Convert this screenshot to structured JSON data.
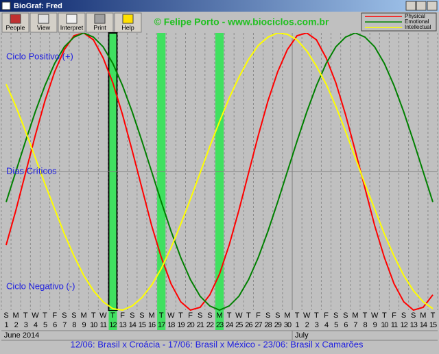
{
  "window": {
    "title": "BioGraf: Fred"
  },
  "toolbar": {
    "buttons": [
      "People",
      "View",
      "Interpret",
      "Print",
      "Help"
    ]
  },
  "watermark": "© Felipe Porto - www.biociclos.com.br",
  "footer": "12/06: Brasil x Croácia - 17/06: Brasil x México - 23/06: Brasil x Camarões",
  "chart_data": {
    "type": "line",
    "labels": {
      "positive": "Ciclo Positivo (+)",
      "critical": "Dias Críticos",
      "negative": "Ciclo Negativo (-)"
    },
    "categories": [
      "1",
      "2",
      "3",
      "4",
      "5",
      "6",
      "7",
      "8",
      "9",
      "10",
      "11",
      "12",
      "13",
      "14",
      "15",
      "16",
      "17",
      "18",
      "19",
      "20",
      "21",
      "22",
      "23",
      "24",
      "25",
      "26",
      "27",
      "28",
      "29",
      "30",
      "1",
      "2",
      "3",
      "4",
      "5",
      "6",
      "7",
      "8",
      "9",
      "10",
      "11",
      "12",
      "13",
      "14",
      "15"
    ],
    "weekdays": [
      "S",
      "M",
      "T",
      "W",
      "T",
      "F",
      "S",
      "S",
      "M",
      "T",
      "W",
      "T",
      "F",
      "S",
      "S",
      "M",
      "T",
      "W",
      "T",
      "F",
      "S",
      "S",
      "M",
      "T",
      "W",
      "T",
      "F",
      "S",
      "S",
      "M",
      "T",
      "W",
      "T",
      "F",
      "S",
      "S",
      "M",
      "T",
      "W",
      "T",
      "F",
      "S",
      "S",
      "M",
      "T"
    ],
    "months": [
      "June 2014",
      "July"
    ],
    "highlight_days": [
      "12",
      "17",
      "23"
    ],
    "ylim": [
      -1,
      1
    ],
    "grid": true,
    "legend": "upper right",
    "series": [
      {
        "name": "Physical",
        "color": "#ff0000",
        "values": [
          -0.53,
          -0.28,
          -0.01,
          0.26,
          0.51,
          0.72,
          0.88,
          0.98,
          1.0,
          0.95,
          0.82,
          0.64,
          0.41,
          0.15,
          -0.12,
          -0.39,
          -0.62,
          -0.81,
          -0.94,
          -1.0,
          -0.98,
          -0.89,
          -0.74,
          -0.53,
          -0.28,
          -0.01,
          0.26,
          0.51,
          0.72,
          0.88,
          0.98,
          1.0,
          0.95,
          0.82,
          0.64,
          0.41,
          0.15,
          -0.12,
          -0.39,
          -0.62,
          -0.81,
          -0.94,
          -1.0,
          -0.98,
          -0.89
        ]
      },
      {
        "name": "Emotional",
        "color": "#008000",
        "values": [
          -0.22,
          0.0,
          0.22,
          0.43,
          0.62,
          0.78,
          0.9,
          0.97,
          1.0,
          0.97,
          0.9,
          0.78,
          0.62,
          0.43,
          0.22,
          0.0,
          -0.22,
          -0.43,
          -0.62,
          -0.78,
          -0.9,
          -0.97,
          -1.0,
          -0.97,
          -0.9,
          -0.78,
          -0.62,
          -0.43,
          -0.22,
          0.0,
          0.22,
          0.43,
          0.62,
          0.78,
          0.9,
          0.97,
          1.0,
          0.97,
          0.9,
          0.78,
          0.62,
          0.43,
          0.22,
          0.0,
          -0.22
        ]
      },
      {
        "name": "Intellectual",
        "color": "#ffff00",
        "values": [
          0.63,
          0.47,
          0.29,
          0.1,
          -0.09,
          -0.27,
          -0.45,
          -0.61,
          -0.75,
          -0.86,
          -0.94,
          -0.99,
          -1.0,
          -0.97,
          -0.91,
          -0.82,
          -0.7,
          -0.55,
          -0.38,
          -0.2,
          -0.01,
          0.18,
          0.36,
          0.53,
          0.68,
          0.81,
          0.91,
          0.97,
          1.0,
          0.99,
          0.95,
          0.87,
          0.76,
          0.63,
          0.47,
          0.29,
          0.1,
          -0.09,
          -0.27,
          -0.45,
          -0.61,
          -0.75,
          -0.86,
          -0.94,
          -0.99
        ]
      }
    ]
  }
}
